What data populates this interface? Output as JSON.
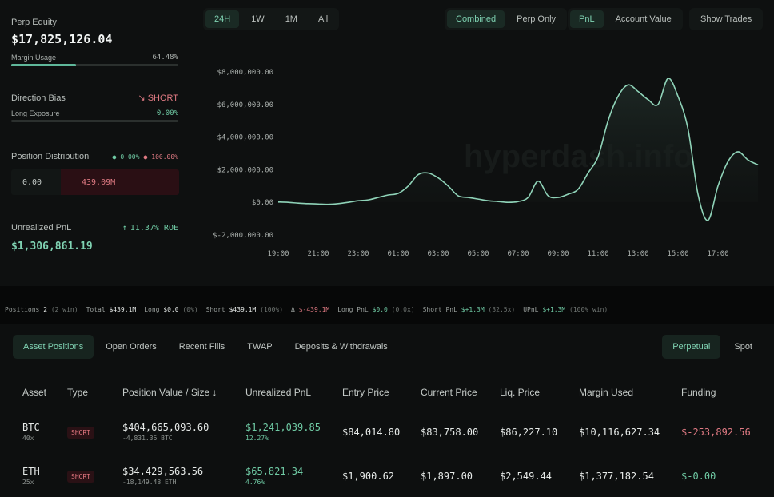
{
  "equity": {
    "label": "Perp Equity",
    "value": "$17,825,126.04",
    "margin_label": "Margin Usage",
    "margin_value": "64.48%",
    "margin_fraction": 0.6448
  },
  "bias": {
    "label": "Direction Bias",
    "value": "SHORT",
    "long_label": "Long Exposure",
    "long_value": "0.00%",
    "long_fraction": 0.0
  },
  "distribution": {
    "label": "Position Distribution",
    "long_pct": "0.00%",
    "short_pct": "100.00%",
    "long_value": "0.00",
    "short_value": "439.09M"
  },
  "upnl": {
    "label": "Unrealized PnL",
    "roe": "11.37% ROE",
    "value": "$1,306,861.19"
  },
  "time_tabs": [
    "24H",
    "1W",
    "1M",
    "All"
  ],
  "view_tabs": [
    "Combined",
    "Perp Only"
  ],
  "metric_tabs": [
    "PnL",
    "Account Value"
  ],
  "show_trades": "Show Trades",
  "watermark": "hyperdash.info",
  "colors": {
    "accent": "#7fd2b2",
    "negative": "#e07a83",
    "line": "#8fd3b8"
  },
  "chart_data": {
    "type": "area",
    "x": [
      "19:00",
      "19:30",
      "20:00",
      "20:30",
      "21:00",
      "21:30",
      "22:00",
      "22:30",
      "23:00",
      "23:30",
      "00:00",
      "00:30",
      "01:00",
      "01:30",
      "02:00",
      "02:30",
      "03:00",
      "03:30",
      "04:00",
      "04:30",
      "05:00",
      "05:30",
      "06:00",
      "06:30",
      "07:00",
      "07:30",
      "08:00",
      "08:30",
      "09:00",
      "09:30",
      "10:00",
      "10:30",
      "11:00",
      "11:30",
      "12:00",
      "12:30",
      "13:00",
      "13:30",
      "14:00",
      "14:30",
      "15:00",
      "15:30",
      "16:00",
      "16:30",
      "17:00",
      "17:30",
      "18:00",
      "18:30",
      "19:00"
    ],
    "y": [
      0.02,
      0.0,
      -0.05,
      -0.08,
      -0.1,
      -0.12,
      -0.08,
      0.0,
      0.1,
      0.15,
      0.3,
      0.45,
      0.55,
      1.0,
      1.7,
      1.8,
      1.5,
      1.0,
      0.4,
      0.3,
      0.2,
      0.1,
      0.05,
      0.0,
      0.05,
      0.3,
      1.3,
      0.4,
      0.3,
      0.5,
      0.8,
      1.8,
      2.8,
      5.0,
      6.5,
      7.2,
      6.8,
      6.3,
      6.0,
      7.6,
      6.5,
      4.5,
      0.5,
      -1.1,
      1.0,
      2.5,
      3.1,
      2.6,
      2.3
    ],
    "ylim": [
      -2000000,
      8000000
    ],
    "y_scale": 1000000,
    "yticks": [
      "$8,000,000.00",
      "$6,000,000.00",
      "$4,000,000.00",
      "$2,000,000.00",
      "$0.00",
      "$-2,000,000.00"
    ],
    "xticks": [
      "19:00",
      "21:00",
      "23:00",
      "01:00",
      "03:00",
      "05:00",
      "07:00",
      "09:00",
      "11:00",
      "13:00",
      "15:00",
      "17:00"
    ],
    "grid": false
  },
  "strip": {
    "positions_label": "Positions",
    "positions_count": "2",
    "positions_win": "(2 win)",
    "total_label": "Total",
    "total_value": "$439.1M",
    "long_label": "Long",
    "long_value": "$0.0",
    "long_pct": "(0%)",
    "short_label": "Short",
    "short_value": "$439.1M",
    "short_pct": "(100%)",
    "delta_value": "$-439.1M",
    "long_pnl_label": "Long PnL",
    "long_pnl_value": "$0.0",
    "long_pnl_pct": "(0.0x)",
    "short_pnl_label": "Short PnL",
    "short_pnl_value": "$+1.3M",
    "short_pnl_pct": "(32.5x)",
    "upnl_label": "UPnL",
    "upnl_value": "$+1.3M",
    "upnl_pct": "(100% win)"
  },
  "tabs": [
    "Asset Positions",
    "Open Orders",
    "Recent Fills",
    "TWAP",
    "Deposits & Withdrawals"
  ],
  "ptabs": [
    "Perpetual",
    "Spot"
  ],
  "columns": [
    "Asset",
    "Type",
    "Position Value / Size ↓",
    "Unrealized PnL",
    "Entry Price",
    "Current Price",
    "Liq. Price",
    "Margin Used",
    "Funding"
  ],
  "rows": [
    {
      "asset": "BTC",
      "lev": "40x",
      "type": "SHORT",
      "value": "$404,665,093.60",
      "size": "-4,831.36 BTC",
      "upnl": "$1,241,039.85",
      "upnl_pct": "12.27%",
      "entry": "$84,014.80",
      "current": "$83,758.00",
      "liq": "$86,227.10",
      "margin": "$10,116,627.34",
      "funding": "$-253,892.56"
    },
    {
      "asset": "ETH",
      "lev": "25x",
      "type": "SHORT",
      "value": "$34,429,563.56",
      "size": "-18,149.48 ETH",
      "upnl": "$65,821.34",
      "upnl_pct": "4.76%",
      "entry": "$1,900.62",
      "current": "$1,897.00",
      "liq": "$2,549.44",
      "margin": "$1,377,182.54",
      "funding": "$-0.00"
    }
  ]
}
